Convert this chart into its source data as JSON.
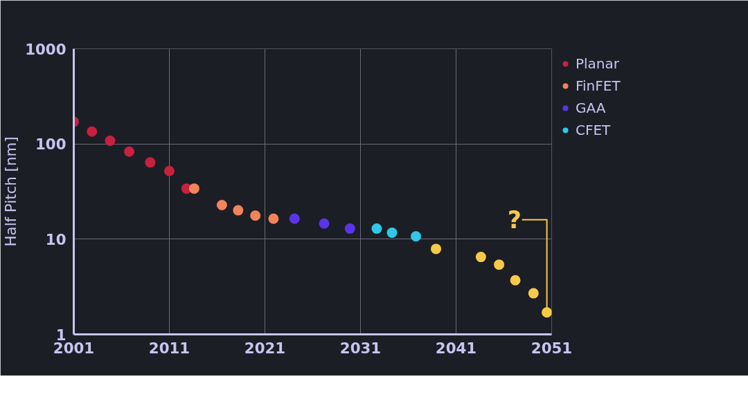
{
  "chart_data": {
    "type": "scatter",
    "ylabel": "Half Pitch [nm]",
    "log": "y",
    "grid": true,
    "legend": "top right",
    "marker": "circle",
    "xlim": [
      2001,
      2051
    ],
    "xticks": [
      2001,
      2011,
      2021,
      2031,
      2041,
      2051
    ],
    "ylim": [
      1,
      1000
    ],
    "yticks": [
      1,
      10,
      100,
      1000
    ],
    "series": [
      {
        "name": "Planar",
        "color": "#c8203f",
        "x": [
          2001,
          2002.9,
          2004.8,
          2006.8,
          2009.0,
          2011.0,
          2012.8
        ],
        "values": [
          171,
          135,
          108,
          83,
          64,
          52,
          34
        ]
      },
      {
        "name": "FinFET",
        "color": "#f0845a",
        "x": [
          2013.6,
          2016.5,
          2018.2,
          2020.0,
          2021.9
        ],
        "values": [
          34,
          22.8,
          20.1,
          17.7,
          16.4
        ]
      },
      {
        "name": "GAA",
        "color": "#5a35e8",
        "x": [
          2024.1,
          2027.2,
          2029.9
        ],
        "values": [
          16.4,
          14.6,
          12.9
        ]
      },
      {
        "name": "CFET",
        "color": "#30c8e8",
        "x": [
          2032.7,
          2034.3,
          2036.8
        ],
        "values": [
          12.9,
          11.7,
          10.7
        ]
      },
      {
        "color": "#f7c948",
        "x": [
          2038.9,
          2043.6,
          2045.5,
          2047.2,
          2049.1,
          2050.5
        ],
        "values": [
          7.9,
          6.5,
          5.4,
          3.7,
          2.7,
          1.7
        ]
      }
    ],
    "annotations": [
      {
        "text": "?",
        "x": 2050.5,
        "y": 1.7
      }
    ]
  }
}
